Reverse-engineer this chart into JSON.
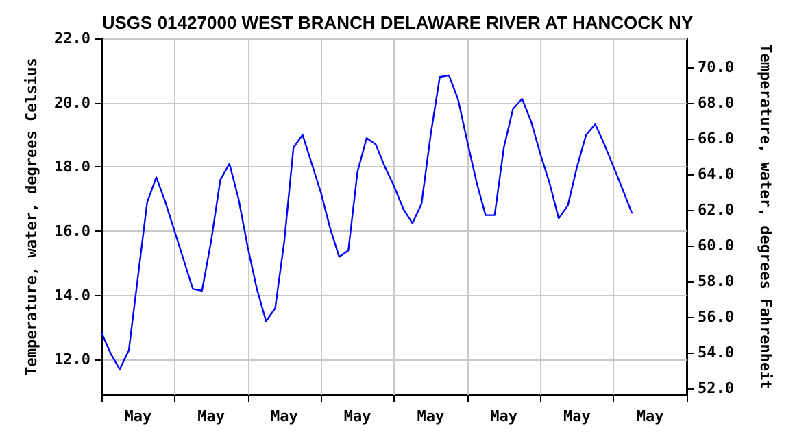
{
  "chart_data": {
    "type": "line",
    "title": "USGS 01427000 WEST BRANCH DELAWARE RIVER AT HANCOCK NY",
    "ylabel": "Temperature, water, degrees Celsius",
    "y2label": "Temperature, water, degrees Fahrenheit",
    "categories": [
      null,
      null,
      null,
      null,
      "May",
      null,
      null,
      null,
      null,
      null,
      null,
      null,
      "May",
      null,
      null,
      null,
      null,
      null,
      null,
      null,
      "May",
      null,
      null,
      null,
      null,
      null,
      null,
      null,
      "May",
      null,
      null,
      null,
      null,
      null,
      null,
      null,
      "May",
      null,
      null,
      null,
      null,
      null,
      null,
      null,
      "May",
      null,
      null,
      null,
      null,
      null,
      null,
      null,
      "May",
      null,
      null,
      null,
      null,
      null,
      null,
      null,
      "May",
      null,
      null,
      null,
      null
    ],
    "ylim": [
      10.9,
      22
    ],
    "yticks": [
      {
        "value": 12,
        "label": "12.0"
      },
      {
        "value": 14,
        "label": "14.0"
      },
      {
        "value": 16,
        "label": "16.0"
      },
      {
        "value": 18,
        "label": "18.0"
      },
      {
        "value": 20,
        "label": "20.0"
      },
      {
        "value": 22,
        "label": "22.0"
      }
    ],
    "y2lim": [
      51.6,
      71.6
    ],
    "y2ticks": [
      {
        "value": 52,
        "label": "52.0"
      },
      {
        "value": 54,
        "label": "54.0"
      },
      {
        "value": 56,
        "label": "56.0"
      },
      {
        "value": 58,
        "label": "58.0"
      },
      {
        "value": 60,
        "label": "60.0"
      },
      {
        "value": 62,
        "label": "62.0"
      },
      {
        "value": 64,
        "label": "64.0"
      },
      {
        "value": 66,
        "label": "66.0"
      },
      {
        "value": 68,
        "label": "68.0"
      },
      {
        "value": 70,
        "label": "70.0"
      }
    ],
    "grid": true,
    "marker": "none",
    "line_style": "solid",
    "series": [
      {
        "color": "#0000ff",
        "values": [
          12.85,
          12.2,
          11.7,
          12.3,
          14.6,
          16.9,
          17.68,
          16.9,
          16.0,
          15.1,
          14.2,
          14.15,
          15.7,
          17.6,
          18.1,
          17.0,
          15.5,
          14.2,
          13.2,
          13.6,
          15.7,
          18.6,
          19.0,
          18.1,
          17.2,
          16.1,
          15.2,
          15.4,
          17.85,
          18.9,
          18.7,
          18.0,
          17.4,
          16.7,
          16.25,
          16.85,
          19.0,
          20.8,
          20.85,
          20.1,
          18.8,
          17.55,
          16.5,
          16.5,
          18.6,
          19.8,
          20.12,
          19.4,
          18.4,
          17.5,
          16.4,
          16.8,
          18.0,
          19.0,
          19.33,
          18.7,
          18.0,
          17.3,
          16.57,
          null,
          null,
          null,
          null,
          null,
          null
        ]
      }
    ]
  }
}
